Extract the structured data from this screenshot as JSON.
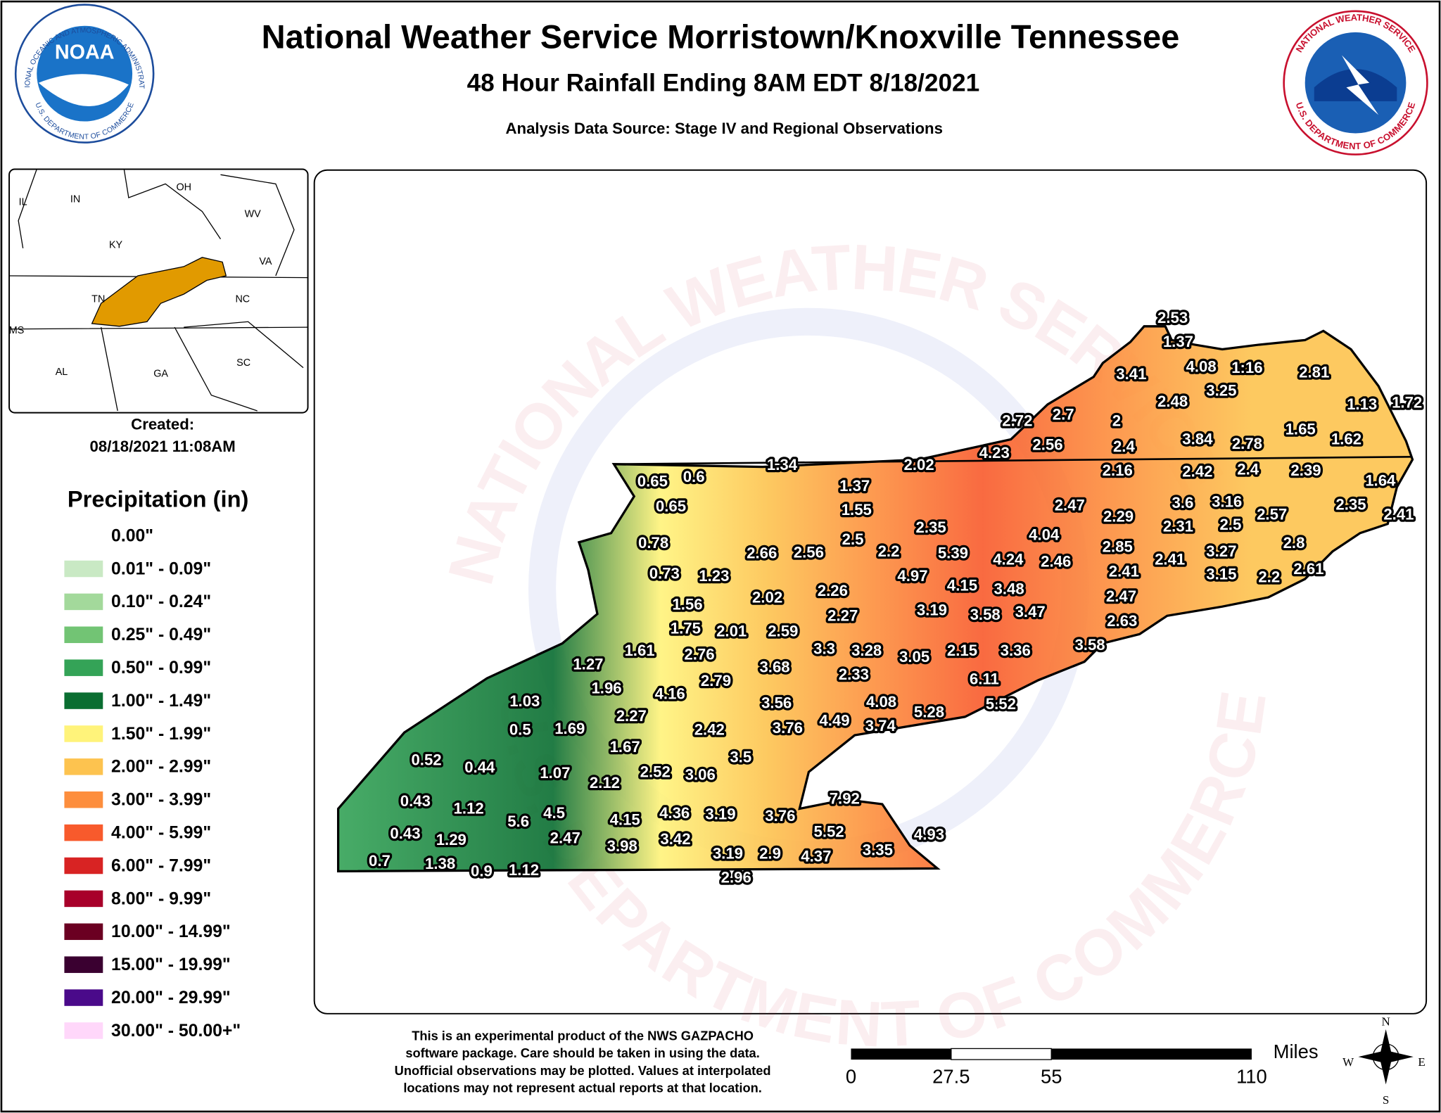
{
  "header": {
    "title": "National Weather Service Morristown/Knoxville Tennessee",
    "subtitle": "48 Hour Rainfall Ending 8AM EDT 8/18/2021",
    "source": "Analysis Data Source: Stage IV and Regional Observations"
  },
  "noaa_logo": {
    "name": "NOAA",
    "ring_top": "NATIONAL OCEANIC AND ATMOSPHERIC ADMINISTRATION",
    "ring_bottom": "U.S. DEPARTMENT OF COMMERCE"
  },
  "nws_logo": {
    "ring_top": "NATIONAL WEATHER SERVICE",
    "ring_bottom": "U.S. DEPARTMENT OF COMMERCE"
  },
  "watermark": {
    "top": "NATIONAL WEATHER SERVICE",
    "bottom": "U.S. DEPARTMENT OF COMMERCE"
  },
  "inset_map": {
    "states": [
      "IL",
      "IN",
      "OH",
      "WV",
      "KY",
      "VA",
      "TN",
      "NC",
      "MS",
      "AL",
      "GA",
      "SC"
    ]
  },
  "created": {
    "label": "Created:",
    "datetime": "08/18/2021 11:08AM"
  },
  "legend": {
    "title": "Precipitation (in)",
    "items": [
      {
        "label": "0.00\"",
        "color": "#ffffff"
      },
      {
        "label": "0.01\" - 0.09\"",
        "color": "#c9e9c4"
      },
      {
        "label": "0.10\" - 0.24\"",
        "color": "#a3d99b"
      },
      {
        "label": "0.25\" - 0.49\"",
        "color": "#72c474"
      },
      {
        "label": "0.50\" - 0.99\"",
        "color": "#34a357"
      },
      {
        "label": "1.00\" - 1.49\"",
        "color": "#0a6e31"
      },
      {
        "label": "1.50\" - 1.99\"",
        "color": "#fff37a"
      },
      {
        "label": "2.00\" - 2.99\"",
        "color": "#fdc34f"
      },
      {
        "label": "3.00\" - 3.99\"",
        "color": "#fd8e3d"
      },
      {
        "label": "4.00\" - 5.99\"",
        "color": "#f85a2c"
      },
      {
        "label": "6.00\" - 7.99\"",
        "color": "#d82323"
      },
      {
        "label": "8.00\" - 9.99\"",
        "color": "#a8002a"
      },
      {
        "label": "10.00\" - 14.99\"",
        "color": "#6b0022"
      },
      {
        "label": "15.00\" - 19.99\"",
        "color": "#3a0030"
      },
      {
        "label": "20.00\" - 29.99\"",
        "color": "#4a0a8a"
      },
      {
        "label": "30.00\" - 50.00+\"",
        "color": "#ffd7fa"
      }
    ]
  },
  "observations": [
    "2.53",
    "1.37",
    "3.41",
    "4.08",
    "1:16",
    "2.81",
    "3.25",
    "2.48",
    "1.13",
    "1.72",
    "2.72",
    "2.7",
    "2",
    "1.65",
    "1.62",
    "3.84",
    "2.78",
    "4.23",
    "2.56",
    "2.4",
    "1.34",
    "2.02",
    "2.16",
    "2.42",
    "2.4",
    "2.39",
    "1.64",
    "0.65",
    "0.6",
    "1.37",
    "0.65",
    "1.55",
    "2.47",
    "2.29",
    "3.6",
    "3.16",
    "2.35",
    "2.41",
    "2.31",
    "2.5",
    "2.57",
    "4.04",
    "2.35",
    "2.5",
    "2.2",
    "2.66",
    "2.56",
    "0.78",
    "5.39",
    "2.85",
    "2.8",
    "4.24",
    "2.46",
    "2.41",
    "3.27",
    "2.41",
    "3.15",
    "2.2",
    "2.61",
    "0.73",
    "1.23",
    "4.97",
    "4.15",
    "3.48",
    "2.26",
    "2.02",
    "1.56",
    "2.47",
    "3.19",
    "3.58",
    "3.47",
    "2.27",
    "1.75",
    "2.01",
    "2.59",
    "2.63",
    "1.61",
    "2.76",
    "3.3",
    "3.28",
    "3.05",
    "2.15",
    "3.36",
    "3.58",
    "1.27",
    "3.68",
    "2.33",
    "2.79",
    "6.11",
    "1.96",
    "4.16",
    "1.03",
    "3.56",
    "4.08",
    "5.52",
    "5.28",
    "2.27",
    "0.5",
    "1.69",
    "2.42",
    "3.76",
    "4.49",
    "3.74",
    "1.67",
    "3.5",
    "0.52",
    "0.44",
    "1.07",
    "2.12",
    "2.52",
    "3.06",
    "7.92",
    "0.43",
    "1.12",
    "4.5",
    "5.6",
    "4.15",
    "4.36",
    "3.19",
    "3.76",
    "5.52",
    "4.93",
    "0.43",
    "1.29",
    "2.47",
    "3.98",
    "3.42",
    "3.19",
    "2.9",
    "4.37",
    "3.35",
    "0.7",
    "1.38",
    "0.9",
    "1.12",
    "2.96"
  ],
  "footnote": [
    "This is an experimental product of the NWS GAZPACHO",
    "software package. Care should be taken in using the data.",
    "Unofficial observations may be plotted. Values at interpolated",
    "locations may not represent actual reports at that location."
  ],
  "scale_bar": {
    "unit": "Miles",
    "labels": [
      "0",
      "27.5",
      "55",
      "110"
    ]
  },
  "compass": {
    "north": "N",
    "east": "E",
    "south": "S",
    "west": "W"
  }
}
